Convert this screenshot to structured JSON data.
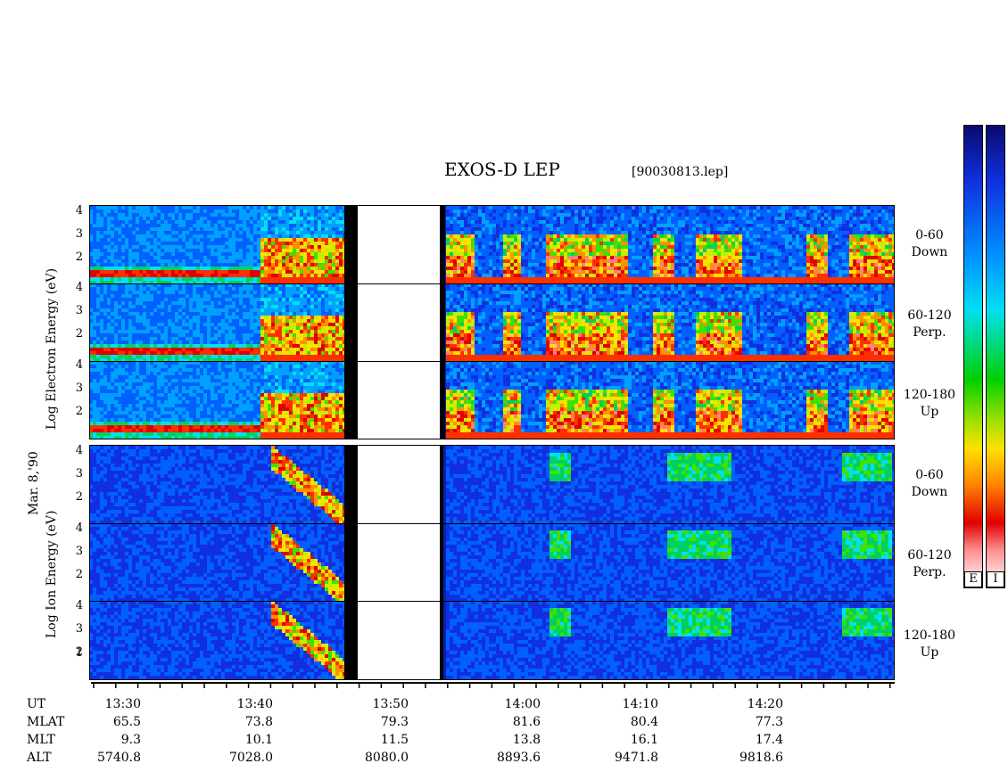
{
  "header": {
    "title": "EXOS-D LEP",
    "file_tag": "[90030813.lep]"
  },
  "left_axis": {
    "electron_label": "Log  Electron  Energy  (eV)",
    "ion_label": "Log   Ion   Energy  (eV)",
    "date_label": "Mar. 8,'90",
    "ticks": [
      "4",
      "3",
      "2"
    ],
    "ion_bottom_ticks": [
      "4",
      "3",
      "2",
      "1"
    ]
  },
  "panel_labels": [
    {
      "range": "0-60",
      "dir": "Down"
    },
    {
      "range": "60-120",
      "dir": "Perp."
    },
    {
      "range": "120-180",
      "dir": "Up"
    },
    {
      "range": "0-60",
      "dir": "Down"
    },
    {
      "range": "60-120",
      "dir": "Perp."
    },
    {
      "range": "120-180",
      "dir": "Up"
    }
  ],
  "colorbars": {
    "electron_label": "E",
    "ion_label": "I"
  },
  "time_table": {
    "row_labels": [
      "UT",
      "MLAT",
      "MLT",
      "ALT"
    ],
    "columns": [
      {
        "UT": "13:30",
        "MLAT": "65.5",
        "MLT": "9.3",
        "ALT": "5740.8"
      },
      {
        "UT": "13:40",
        "MLAT": "73.8",
        "MLT": "10.1",
        "ALT": "7028.0"
      },
      {
        "UT": "13:50",
        "MLAT": "79.3",
        "MLT": "11.5",
        "ALT": "8080.0"
      },
      {
        "UT": "14:00",
        "MLAT": "81.6",
        "MLT": "13.8",
        "ALT": "8893.6"
      },
      {
        "UT": "14:10",
        "MLAT": "80.4",
        "MLT": "16.1",
        "ALT": "9471.8"
      },
      {
        "UT": "14:20",
        "MLAT": "77.3",
        "MLT": "17.4",
        "ALT": "9818.6"
      }
    ]
  },
  "chart_data": {
    "type": "heatmap",
    "title": "EXOS-D LEP",
    "xlabel": "UT",
    "ylabel": "Log Energy (eV)",
    "ylim": [
      1,
      4
    ],
    "x_ticks": [
      "13:30",
      "13:40",
      "13:50",
      "14:00",
      "14:10",
      "14:20"
    ],
    "data_gap": [
      "13:47",
      "13:57"
    ],
    "series": [
      {
        "name": "Electron 0-60 Down"
      },
      {
        "name": "Electron 60-120 Perp."
      },
      {
        "name": "Electron 120-180 Up"
      },
      {
        "name": "Ion 0-60 Down"
      },
      {
        "name": "Ion 60-120 Perp."
      },
      {
        "name": "Ion 120-180 Up"
      }
    ],
    "colors": {
      "background": "#0a1fb0",
      "low": "#00c8ff",
      "mid": "#00e000",
      "high": "#ffe000",
      "peak": "#e00000",
      "max": "#ffffff"
    }
  }
}
